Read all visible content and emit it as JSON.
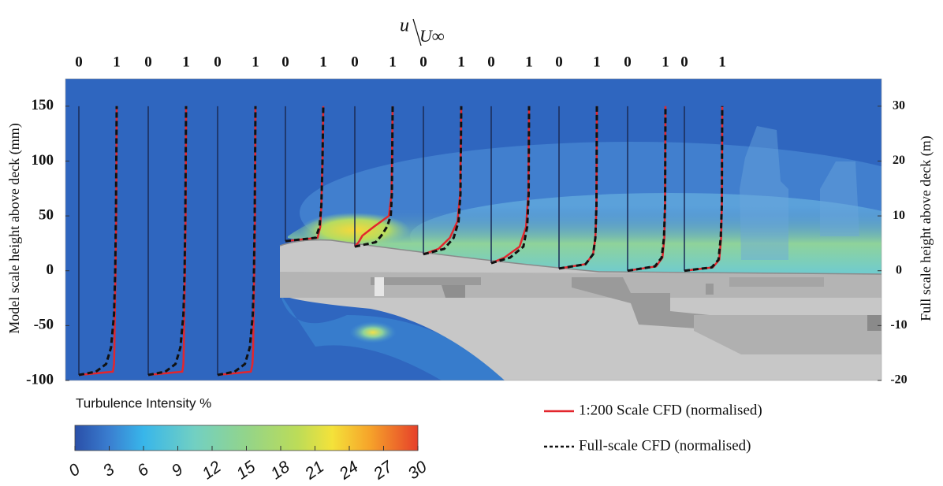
{
  "chart_data": {
    "type": "line",
    "title_numerator": "u",
    "title_denominator": "U∞",
    "y_label": "Model scale height above deck (mm)",
    "y2_label": "Full scale height above deck (m)",
    "ylim": [
      -100,
      175
    ],
    "yticks": [
      -100,
      -50,
      0,
      50,
      100,
      150
    ],
    "y2lim": [
      -20,
      35
    ],
    "y2ticks": [
      -20,
      -10,
      0,
      10,
      20,
      30
    ],
    "xlim": [
      0,
      1
    ],
    "stations": [
      {
        "xticks": [
          0,
          1
        ],
        "heights": [
          -95,
          -92,
          -85,
          -70,
          -40,
          0,
          50,
          150
        ]
      },
      {
        "xticks": [
          0,
          1
        ],
        "heights": [
          -95,
          -92,
          -85,
          -70,
          -40,
          0,
          50,
          150
        ]
      },
      {
        "xticks": [
          0,
          1
        ],
        "heights": [
          -95,
          -92,
          -85,
          -70,
          -40,
          0,
          50,
          150
        ]
      },
      {
        "xticks": [
          0,
          1
        ],
        "heights": [
          27,
          30,
          40,
          60,
          100,
          150
        ]
      },
      {
        "xticks": [
          0,
          1
        ],
        "heights": [
          22,
          26,
          32,
          40,
          50,
          70,
          150
        ]
      },
      {
        "xticks": [
          0,
          1
        ],
        "heights": [
          15,
          20,
          30,
          45,
          70,
          150
        ]
      },
      {
        "xticks": [
          0,
          1
        ],
        "heights": [
          7,
          12,
          22,
          40,
          70,
          150
        ]
      },
      {
        "xticks": [
          0,
          1
        ],
        "heights": [
          2,
          6,
          15,
          30,
          60,
          150
        ]
      },
      {
        "xticks": [
          0,
          1
        ],
        "heights": [
          0,
          4,
          12,
          30,
          60,
          150
        ]
      },
      {
        "xticks": [
          0,
          1
        ],
        "heights": [
          0,
          3,
          10,
          30,
          60,
          150
        ]
      }
    ],
    "series": [
      {
        "name": "1:200 Scale CFD (normalised)",
        "color": "#e3262d",
        "dash": false,
        "profiles": [
          [
            0,
            0.9,
            0.93,
            0.94,
            0.95,
            0.97,
            0.99,
            1.0
          ],
          [
            0,
            0.9,
            0.93,
            0.94,
            0.95,
            0.97,
            0.99,
            1.0
          ],
          [
            0,
            0.88,
            0.92,
            0.94,
            0.95,
            0.97,
            0.99,
            1.0
          ],
          [
            0,
            0.85,
            0.92,
            0.95,
            0.98,
            1.0
          ],
          [
            0,
            0.1,
            0.2,
            0.5,
            0.9,
            0.97,
            1.0
          ],
          [
            0,
            0.4,
            0.7,
            0.9,
            0.97,
            1.0
          ],
          [
            0,
            0.35,
            0.75,
            0.92,
            0.98,
            1.0
          ],
          [
            0,
            0.7,
            0.9,
            0.96,
            0.99,
            1.0
          ],
          [
            0,
            0.75,
            0.92,
            0.97,
            0.99,
            1.0
          ],
          [
            0,
            0.75,
            0.92,
            0.97,
            0.99,
            1.0
          ]
        ]
      },
      {
        "name": "Full-scale CFD (normalised)",
        "color": "#111111",
        "dash": true,
        "profiles": [
          [
            0,
            0.45,
            0.72,
            0.85,
            0.93,
            0.96,
            0.98,
            1.0
          ],
          [
            0,
            0.45,
            0.72,
            0.85,
            0.93,
            0.96,
            0.98,
            1.0
          ],
          [
            0,
            0.45,
            0.72,
            0.85,
            0.93,
            0.96,
            0.98,
            1.0
          ],
          [
            0,
            0.8,
            0.9,
            0.95,
            0.98,
            1.0
          ],
          [
            0,
            0.55,
            0.7,
            0.85,
            0.95,
            0.98,
            1.0
          ],
          [
            0,
            0.55,
            0.8,
            0.93,
            0.98,
            1.0
          ],
          [
            0,
            0.5,
            0.85,
            0.95,
            0.99,
            1.0
          ],
          [
            0,
            0.7,
            0.9,
            0.96,
            0.99,
            1.0
          ],
          [
            0,
            0.72,
            0.9,
            0.96,
            0.99,
            1.0
          ],
          [
            0,
            0.72,
            0.9,
            0.96,
            0.99,
            1.0
          ]
        ]
      }
    ],
    "colorbar": {
      "label": "Turbulence Intensity %",
      "lim": [
        0,
        30
      ],
      "ticks": [
        0,
        3,
        6,
        9,
        12,
        15,
        18,
        21,
        24,
        27,
        30
      ]
    }
  }
}
